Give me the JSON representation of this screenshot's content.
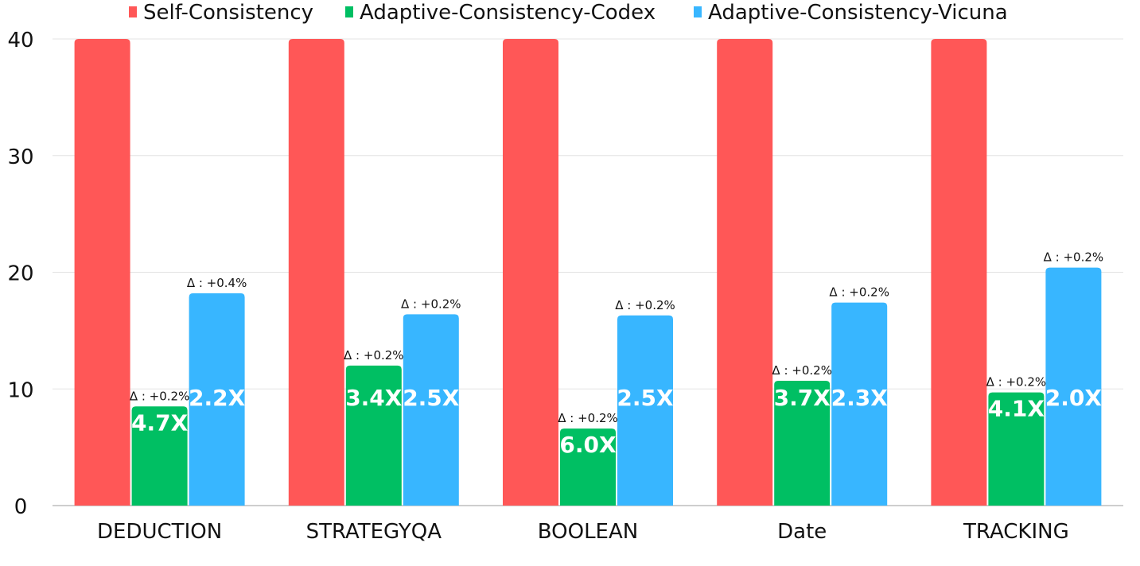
{
  "chart_data": {
    "type": "bar",
    "categories": [
      "DEDUCTION",
      "STRATEGYQA",
      "BOOLEAN",
      "Date",
      "TRACKING"
    ],
    "series": [
      {
        "name": "Self-Consistency",
        "color": "#ff5757",
        "values": [
          40,
          40,
          40,
          40,
          40
        ]
      },
      {
        "name": "Adaptive-Consistency-Codex",
        "color": "#00bf63",
        "values": [
          8.5,
          12,
          6.6,
          10.7,
          9.7
        ],
        "speedup_labels": [
          "4.7X",
          "3.4X",
          "6.0X",
          "3.7X",
          "4.1X"
        ],
        "delta_labels": [
          "Δ : +0.2%",
          "Δ : +0.2%",
          "Δ : +0.2%",
          "Δ : +0.2%",
          "Δ : +0.2%"
        ]
      },
      {
        "name": "Adaptive-Consistency-Vicuna",
        "color": "#38b6ff",
        "values": [
          18.2,
          16.4,
          16.3,
          17.4,
          20.4
        ],
        "speedup_labels": [
          "2.2X",
          "2.5X",
          "2.5X",
          "2.3X",
          "2.0X"
        ],
        "delta_labels": [
          "Δ : +0.4%",
          "Δ : +0.2%",
          "Δ : +0.2%",
          "Δ : +0.2%",
          "Δ : +0.2%"
        ]
      }
    ],
    "yticks": [
      "0",
      "10",
      "20",
      "30",
      "40"
    ],
    "ylim": [
      0,
      40
    ],
    "grid": true,
    "legend": "top"
  }
}
